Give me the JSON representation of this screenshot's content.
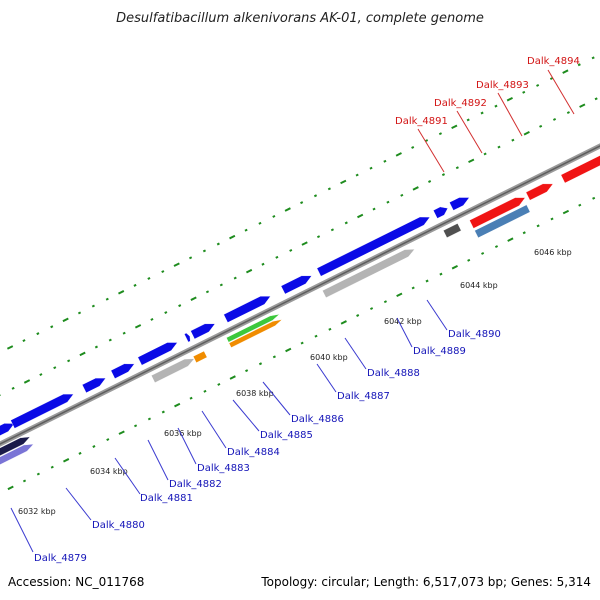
{
  "title": "Desulfatibacillum alkenivorans AK-01, complete genome",
  "footer": {
    "accession": "Accession: NC_011768",
    "info": "Topology: circular; Length: 6,517,073 bp; Genes: 5,314"
  },
  "colors": {
    "blue": "#0a0ae6",
    "red": "#f01414",
    "steel": "#4a7fb5",
    "gray": "#b4b4b4",
    "darkgray": "#505050",
    "orange": "#f08c00",
    "green": "#3cc83c",
    "navy": "#1a1a4a",
    "lavender": "#7a74d6",
    "backbone": "#8c8c8c",
    "tick": "#1e8c1e"
  },
  "kbp_labels": [
    "6032 kbp",
    "6034 kbp",
    "6036 kbp",
    "6038 kbp",
    "6040 kbp",
    "6042 kbp",
    "6044 kbp",
    "6046 kbp"
  ],
  "gene_labels": [
    {
      "text": "Dalk_4879",
      "color": "blue"
    },
    {
      "text": "Dalk_4880",
      "color": "blue"
    },
    {
      "text": "Dalk_4881",
      "color": "blue"
    },
    {
      "text": "Dalk_4882",
      "color": "blue"
    },
    {
      "text": "Dalk_4883",
      "color": "blue"
    },
    {
      "text": "Dalk_4884",
      "color": "blue"
    },
    {
      "text": "Dalk_4885",
      "color": "blue"
    },
    {
      "text": "Dalk_4886",
      "color": "blue"
    },
    {
      "text": "Dalk_4887",
      "color": "blue"
    },
    {
      "text": "Dalk_4888",
      "color": "blue"
    },
    {
      "text": "Dalk_4889",
      "color": "blue"
    },
    {
      "text": "Dalk_4890",
      "color": "blue"
    },
    {
      "text": "Dalk_4891",
      "color": "red"
    },
    {
      "text": "Dalk_4892",
      "color": "red"
    },
    {
      "text": "Dalk_4893",
      "color": "red"
    },
    {
      "text": "Dalk_4894",
      "color": "red"
    }
  ]
}
